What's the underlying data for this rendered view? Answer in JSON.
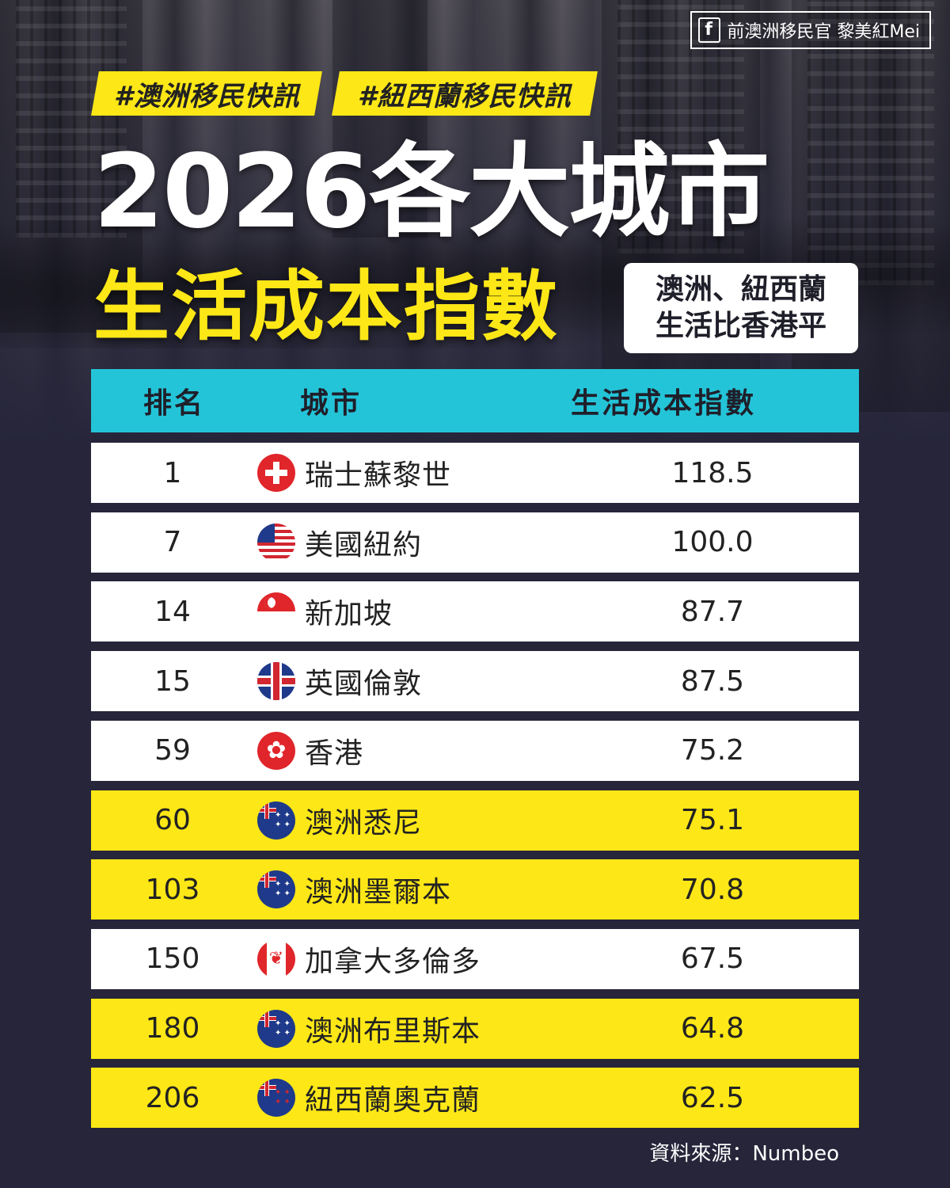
{
  "brand": {
    "label": "前澳洲移民官 黎美紅Mei"
  },
  "tags": [
    "#澳洲移民快訊",
    "#紐西蘭移民快訊"
  ],
  "title": {
    "line1": "2026各大城市",
    "line2": "生活成本指數"
  },
  "subtitle": {
    "line1": "澳洲、紐西蘭",
    "line2": "生活比香港平"
  },
  "table": {
    "headers": {
      "rank": "排名",
      "city": "城市",
      "value": "生活成本指數"
    },
    "rows": [
      {
        "rank": "1",
        "flag": "switzerland-flag-icon",
        "city": "瑞士蘇黎世",
        "value": "118.5",
        "highlight": false
      },
      {
        "rank": "7",
        "flag": "usa-flag-icon",
        "city": "美國紐約",
        "value": "100.0",
        "highlight": false
      },
      {
        "rank": "14",
        "flag": "singapore-flag-icon",
        "city": "新加坡",
        "value": "87.7",
        "highlight": false
      },
      {
        "rank": "15",
        "flag": "uk-flag-icon",
        "city": "英國倫敦",
        "value": "87.5",
        "highlight": false
      },
      {
        "rank": "59",
        "flag": "hongkong-flag-icon",
        "city": "香港",
        "value": "75.2",
        "highlight": false
      },
      {
        "rank": "60",
        "flag": "australia-flag-icon",
        "city": "澳洲悉尼",
        "value": "75.1",
        "highlight": true
      },
      {
        "rank": "103",
        "flag": "australia-flag-icon",
        "city": "澳洲墨爾本",
        "value": "70.8",
        "highlight": true
      },
      {
        "rank": "150",
        "flag": "canada-flag-icon",
        "city": "加拿大多倫多",
        "value": "67.5",
        "highlight": false
      },
      {
        "rank": "180",
        "flag": "australia-flag-icon",
        "city": "澳洲布里斯本",
        "value": "64.8",
        "highlight": true
      },
      {
        "rank": "206",
        "flag": "newzealand-flag-icon",
        "city": "紐西蘭奧克蘭",
        "value": "62.5",
        "highlight": true
      }
    ]
  },
  "source": "資料來源：Numbeo",
  "colors": {
    "yellow": "#fde716",
    "cyan": "#24c4d8",
    "background": "#26253a"
  }
}
